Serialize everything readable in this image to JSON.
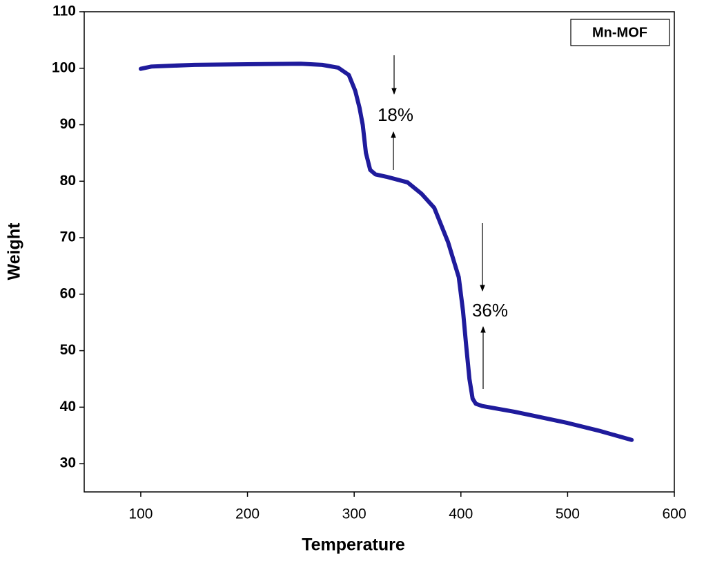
{
  "chart_data": {
    "type": "line",
    "x_label": "Temperature",
    "y_label": "Weight",
    "x": [
      100,
      110,
      150,
      200,
      250,
      270,
      285,
      295,
      301,
      305,
      308,
      311,
      315,
      320,
      330,
      350,
      363,
      375,
      388,
      398,
      402,
      405,
      408,
      411,
      414,
      420,
      450,
      500,
      530,
      560
    ],
    "series": [
      {
        "name": "Mn-MOF",
        "color": "#1f1b9c",
        "values": [
          99.9,
          100.3,
          100.6,
          100.7,
          100.8,
          100.6,
          100.1,
          98.8,
          96,
          93,
          90,
          85,
          82,
          81.2,
          80.8,
          79.8,
          77.8,
          75.3,
          69.2,
          63,
          57,
          50.8,
          45,
          41.5,
          40.6,
          40.2,
          39.2,
          37.2,
          35.8,
          34.2
        ]
      }
    ],
    "xlim": [
      47,
      600
    ],
    "ylim": [
      25,
      110
    ],
    "xticks": [
      100,
      200,
      300,
      400,
      500,
      600
    ],
    "yticks": [
      30,
      40,
      50,
      60,
      70,
      80,
      90,
      100,
      110
    ],
    "annotations": [
      "18%",
      "36%"
    ]
  }
}
